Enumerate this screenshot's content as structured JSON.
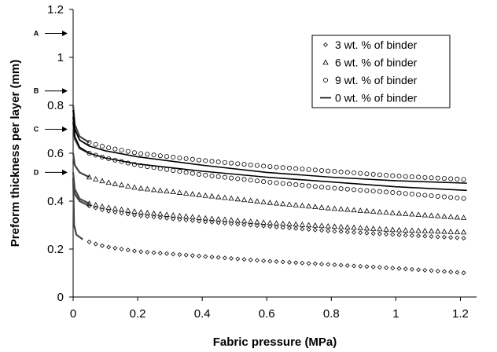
{
  "chart_data": {
    "type": "scatter",
    "title": "",
    "xlabel": "Fabric pressure (MPa)",
    "ylabel": "Preform thickness per layer (mm)",
    "xlim": [
      0,
      1.25
    ],
    "ylim": [
      0,
      1.2
    ],
    "x_ticks": [
      "0",
      "0.2",
      "0.4",
      "0.6",
      "0.8",
      "1",
      "1.2"
    ],
    "y_ticks": [
      "0",
      "0.2",
      "0.4",
      "0.6",
      "0.8",
      "1",
      "1.2"
    ],
    "grid": false,
    "legend_position": "top-right",
    "legend": [
      {
        "label": "3 wt. % of binder",
        "marker": "diamond"
      },
      {
        "label": "6 wt. % of binder",
        "marker": "triangle"
      },
      {
        "label": "9 wt. % of binder",
        "marker": "circle"
      },
      {
        "label": "0 wt. % of binder",
        "marker": "line"
      }
    ],
    "markers": [
      {
        "label": "A",
        "y": 1.1
      },
      {
        "label": "B",
        "y": 0.86
      },
      {
        "label": "C",
        "y": 0.7
      },
      {
        "label": "D",
        "y": 0.52
      }
    ],
    "series": [
      {
        "marker": "circle",
        "points": [
          [
            0.0,
            0.8
          ],
          [
            0.005,
            0.72
          ],
          [
            0.02,
            0.67
          ],
          [
            0.05,
            0.645
          ],
          [
            0.1,
            0.625
          ],
          [
            0.2,
            0.6
          ],
          [
            0.4,
            0.57
          ],
          [
            0.6,
            0.545
          ],
          [
            0.8,
            0.525
          ],
          [
            1.0,
            0.505
          ],
          [
            1.22,
            0.49
          ]
        ]
      },
      {
        "marker": "circle",
        "points": [
          [
            0.0,
            0.73
          ],
          [
            0.005,
            0.66
          ],
          [
            0.02,
            0.62
          ],
          [
            0.05,
            0.6
          ],
          [
            0.1,
            0.58
          ],
          [
            0.2,
            0.55
          ],
          [
            0.4,
            0.51
          ],
          [
            0.6,
            0.48
          ],
          [
            0.8,
            0.455
          ],
          [
            1.0,
            0.435
          ],
          [
            1.22,
            0.41
          ]
        ]
      },
      {
        "marker": "line",
        "points": [
          [
            0.0,
            0.78
          ],
          [
            0.005,
            0.7
          ],
          [
            0.02,
            0.655
          ],
          [
            0.05,
            0.63
          ],
          [
            0.1,
            0.61
          ],
          [
            0.2,
            0.585
          ],
          [
            0.4,
            0.55
          ],
          [
            0.6,
            0.52
          ],
          [
            0.8,
            0.5
          ],
          [
            1.0,
            0.485
          ],
          [
            1.22,
            0.475
          ]
        ]
      },
      {
        "marker": "line",
        "points": [
          [
            0.0,
            0.75
          ],
          [
            0.005,
            0.67
          ],
          [
            0.02,
            0.625
          ],
          [
            0.05,
            0.6
          ],
          [
            0.1,
            0.58
          ],
          [
            0.2,
            0.555
          ],
          [
            0.4,
            0.525
          ],
          [
            0.6,
            0.5
          ],
          [
            0.8,
            0.48
          ],
          [
            1.0,
            0.46
          ],
          [
            1.22,
            0.445
          ]
        ]
      },
      {
        "marker": "triangle",
        "points": [
          [
            0.0,
            0.6
          ],
          [
            0.005,
            0.55
          ],
          [
            0.02,
            0.52
          ],
          [
            0.05,
            0.5
          ],
          [
            0.1,
            0.48
          ],
          [
            0.2,
            0.455
          ],
          [
            0.4,
            0.425
          ],
          [
            0.6,
            0.395
          ],
          [
            0.8,
            0.37
          ],
          [
            1.0,
            0.35
          ],
          [
            1.22,
            0.33
          ]
        ]
      },
      {
        "marker": "triangle",
        "points": [
          [
            0.0,
            0.52
          ],
          [
            0.005,
            0.45
          ],
          [
            0.02,
            0.41
          ],
          [
            0.05,
            0.39
          ],
          [
            0.1,
            0.375
          ],
          [
            0.2,
            0.355
          ],
          [
            0.4,
            0.33
          ],
          [
            0.6,
            0.31
          ],
          [
            0.8,
            0.295
          ],
          [
            1.0,
            0.28
          ],
          [
            1.22,
            0.27
          ]
        ]
      },
      {
        "marker": "diamond",
        "points": [
          [
            0.0,
            0.47
          ],
          [
            0.005,
            0.43
          ],
          [
            0.02,
            0.4
          ],
          [
            0.05,
            0.38
          ],
          [
            0.1,
            0.36
          ],
          [
            0.2,
            0.34
          ],
          [
            0.4,
            0.315
          ],
          [
            0.6,
            0.295
          ],
          [
            0.8,
            0.275
          ],
          [
            1.0,
            0.26
          ],
          [
            1.22,
            0.245
          ]
        ]
      },
      {
        "marker": "diamond",
        "points": [
          [
            0.0,
            0.5
          ],
          [
            0.003,
            0.3
          ],
          [
            0.01,
            0.26
          ],
          [
            0.03,
            0.24
          ],
          [
            0.06,
            0.225
          ],
          [
            0.1,
            0.21
          ],
          [
            0.2,
            0.19
          ],
          [
            0.4,
            0.17
          ],
          [
            0.6,
            0.15
          ],
          [
            0.8,
            0.135
          ],
          [
            1.0,
            0.12
          ],
          [
            1.22,
            0.1
          ]
        ]
      }
    ]
  }
}
